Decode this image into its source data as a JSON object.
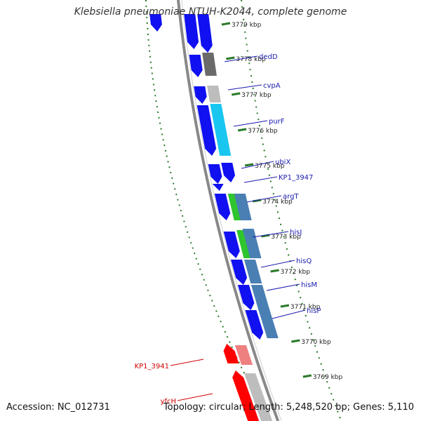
{
  "title": "Klebsiella pneumoniae NTUH-K2044, complete genome",
  "footer": {
    "accession": "Accession: NC_012731",
    "summary": "Topology: circular; Length: 5,248,520 bp; Genes: 5,110"
  },
  "colors": {
    "backbone": "#888888",
    "cds_blue": "#1010f0",
    "tick_green": "#2a7a2a",
    "forward_label": "#1a1ab0",
    "reverse_label": "#d00000",
    "hit_red": "#ff0000",
    "hit_pink": "#ef8080",
    "hit_gray": "#bdbdbd",
    "hit_darkgray": "#6a6a6a",
    "hit_cyan": "#19c6f0",
    "hit_green": "#2ec52e",
    "hit_steel": "#4a7fb4"
  },
  "ruler": [
    {
      "label": "3779 kbp"
    },
    {
      "label": "3778 kbp"
    },
    {
      "label": "3777 kbp"
    },
    {
      "label": "3776 kbp"
    },
    {
      "label": "3775 kbp"
    },
    {
      "label": "3774 kbp"
    },
    {
      "label": "3773 kbp"
    },
    {
      "label": "3772 kbp"
    },
    {
      "label": "3771 kbp"
    },
    {
      "label": "3770 kbp"
    },
    {
      "label": "3769 kbp"
    }
  ],
  "gene_labels": [
    {
      "name": "dedD",
      "strand": "forward"
    },
    {
      "name": "cvpA",
      "strand": "forward"
    },
    {
      "name": "purF",
      "strand": "forward"
    },
    {
      "name": "ubiX",
      "strand": "forward"
    },
    {
      "name": "KP1_3947",
      "strand": "forward"
    },
    {
      "name": "argT",
      "strand": "forward"
    },
    {
      "name": "hisJ",
      "strand": "forward"
    },
    {
      "name": "hisQ",
      "strand": "forward"
    },
    {
      "name": "hisM",
      "strand": "forward"
    },
    {
      "name": "hisP",
      "strand": "forward"
    },
    {
      "name": "KP1_3941",
      "strand": "reverse"
    },
    {
      "name": "yfcH",
      "strand": "reverse"
    }
  ]
}
